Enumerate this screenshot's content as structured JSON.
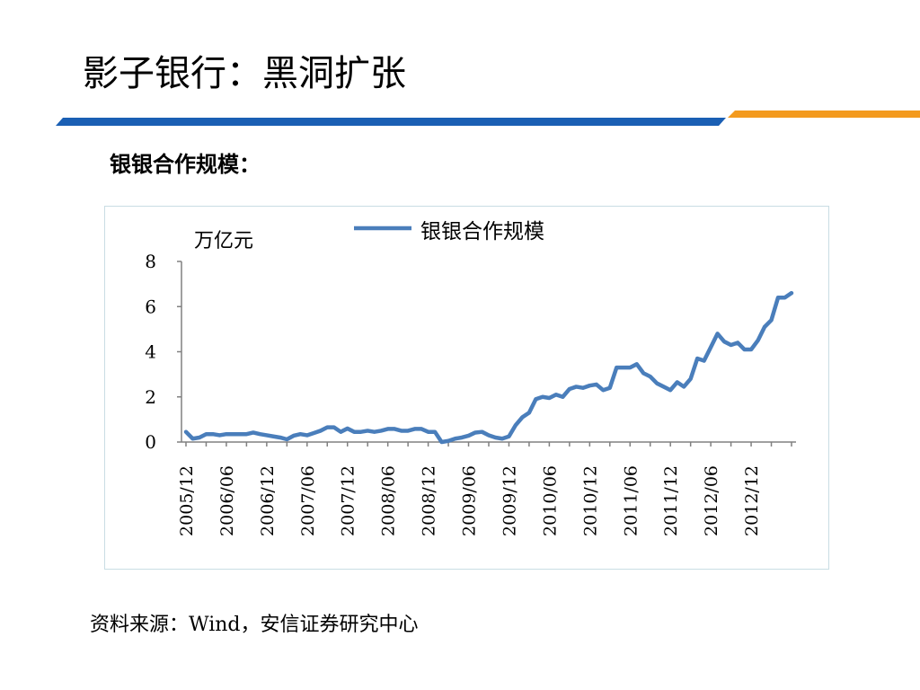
{
  "slide": {
    "title": "影子银行：黑洞扩张",
    "subheading": "银银合作规模：",
    "source": "资料来源：Wind，安信证券研究中心"
  },
  "colors": {
    "header_blue": "#1a5fb4",
    "header_orange": "#f39a1e",
    "series_line": "#4a7ebb",
    "axis": "#808080"
  },
  "chart_data": {
    "type": "line",
    "ylabel": "万亿元",
    "ylim": [
      0,
      8
    ],
    "yticks": [
      0,
      2,
      4,
      6,
      8
    ],
    "xtick_labels": [
      "2005/12",
      "2006/06",
      "2006/12",
      "2007/06",
      "2007/12",
      "2008/06",
      "2008/12",
      "2009/06",
      "2009/12",
      "2010/06",
      "2010/12",
      "2011/06",
      "2011/12",
      "2012/06",
      "2012/12"
    ],
    "legend_position": "top",
    "grid": false,
    "series": [
      {
        "name": "银银合作规模",
        "x": [
          "2005/12",
          "2006/01",
          "2006/02",
          "2006/03",
          "2006/04",
          "2006/05",
          "2006/06",
          "2006/07",
          "2006/08",
          "2006/09",
          "2006/10",
          "2006/11",
          "2006/12",
          "2007/01",
          "2007/02",
          "2007/03",
          "2007/04",
          "2007/05",
          "2007/06",
          "2007/07",
          "2007/08",
          "2007/09",
          "2007/10",
          "2007/11",
          "2007/12",
          "2008/01",
          "2008/02",
          "2008/03",
          "2008/04",
          "2008/05",
          "2008/06",
          "2008/07",
          "2008/08",
          "2008/09",
          "2008/10",
          "2008/11",
          "2008/12",
          "2009/01",
          "2009/02",
          "2009/03",
          "2009/04",
          "2009/05",
          "2009/06",
          "2009/07",
          "2009/08",
          "2009/09",
          "2009/10",
          "2009/11",
          "2009/12",
          "2010/01",
          "2010/02",
          "2010/03",
          "2010/04",
          "2010/05",
          "2010/06",
          "2010/07",
          "2010/08",
          "2010/09",
          "2010/10",
          "2010/11",
          "2010/12",
          "2011/01",
          "2011/02",
          "2011/03",
          "2011/04",
          "2011/05",
          "2011/06",
          "2011/07",
          "2011/08",
          "2011/09",
          "2011/10",
          "2011/11",
          "2011/12",
          "2012/01",
          "2012/02",
          "2012/03",
          "2012/04",
          "2012/05",
          "2012/06",
          "2012/07",
          "2012/08",
          "2012/09",
          "2012/10",
          "2012/11",
          "2012/12",
          "2013/01",
          "2013/02",
          "2013/03",
          "2013/04",
          "2013/05",
          "2013/06"
        ],
        "values": [
          0.45,
          0.15,
          0.2,
          0.35,
          0.35,
          0.3,
          0.35,
          0.35,
          0.35,
          0.35,
          0.42,
          0.35,
          0.3,
          0.25,
          0.2,
          0.12,
          0.28,
          0.35,
          0.3,
          0.4,
          0.5,
          0.65,
          0.65,
          0.45,
          0.6,
          0.45,
          0.45,
          0.5,
          0.45,
          0.5,
          0.58,
          0.58,
          0.5,
          0.5,
          0.58,
          0.58,
          0.45,
          0.45,
          0.0,
          0.05,
          0.15,
          0.2,
          0.28,
          0.42,
          0.45,
          0.3,
          0.2,
          0.15,
          0.25,
          0.75,
          1.1,
          1.3,
          1.9,
          2.0,
          1.95,
          2.1,
          2.0,
          2.35,
          2.45,
          2.4,
          2.5,
          2.55,
          2.3,
          2.4,
          3.3,
          3.3,
          3.3,
          3.45,
          3.05,
          2.9,
          2.6,
          2.45,
          2.3,
          2.65,
          2.45,
          2.8,
          3.7,
          3.6,
          4.2,
          4.8,
          4.45,
          4.3,
          4.4,
          4.1,
          4.1,
          4.5,
          5.1,
          5.4,
          6.4,
          6.4,
          6.6
        ]
      }
    ]
  }
}
